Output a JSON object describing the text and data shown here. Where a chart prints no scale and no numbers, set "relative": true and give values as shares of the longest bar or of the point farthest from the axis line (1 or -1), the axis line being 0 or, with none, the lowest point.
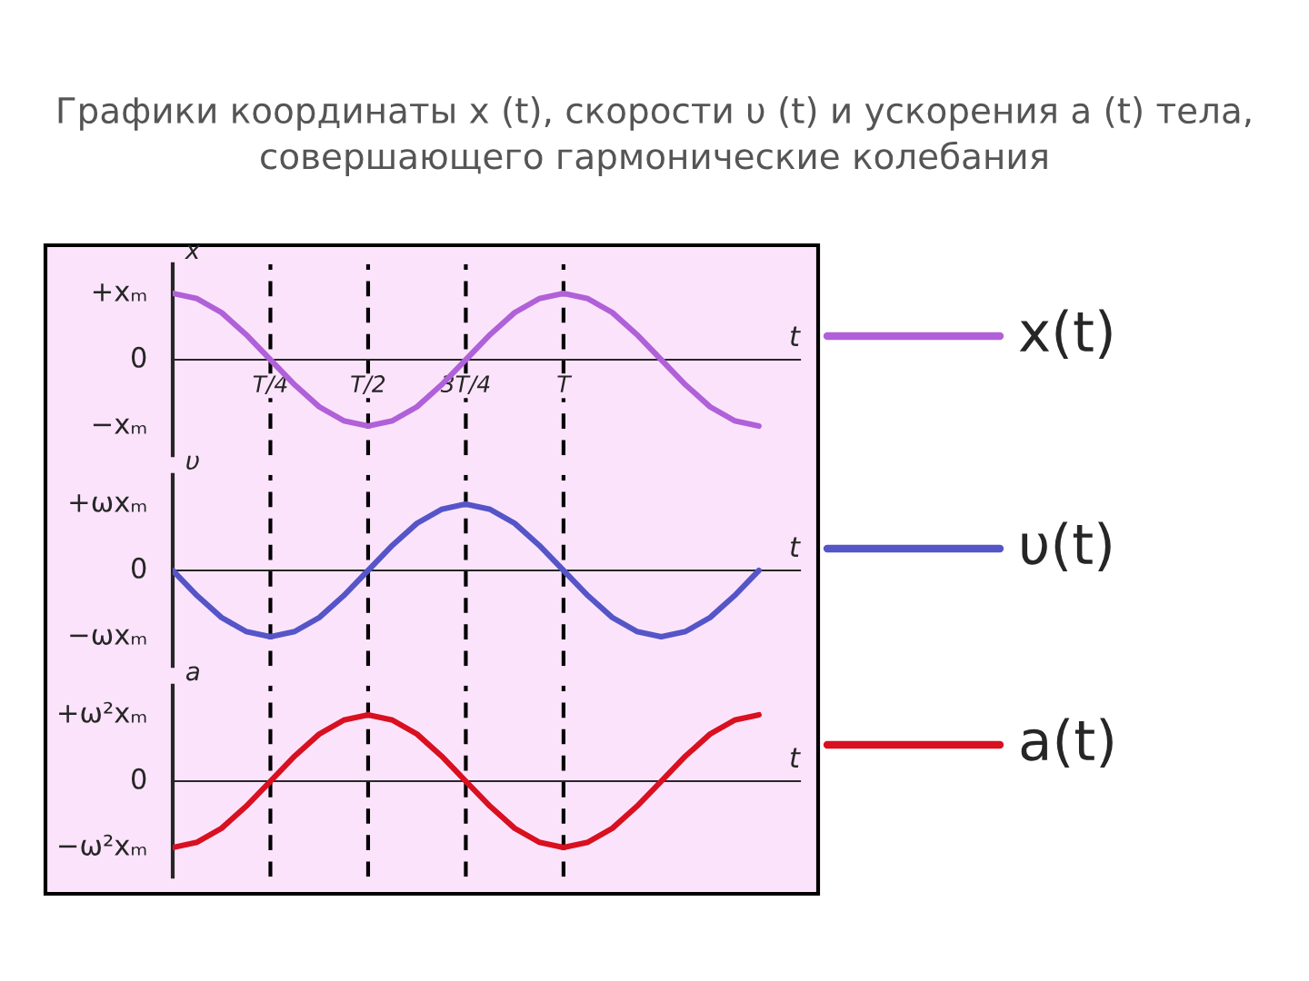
{
  "chart_data": [
    {
      "type": "line",
      "title": "Графики координаты x (t), скорости υ (t) и ускорения a (t) тела, совершающего гармонические колебания",
      "xlabel": "t",
      "ylabel": "x",
      "relative": true,
      "grid": "x",
      "line_style": "solid",
      "categories": [
        null,
        null,
        null,
        null,
        "T/4",
        null,
        null,
        null,
        "T/2",
        null,
        null,
        null,
        "3T/4",
        null,
        null,
        null,
        "T",
        null,
        null,
        null,
        null,
        null,
        null,
        null,
        null
      ],
      "series": [
        {
          "name": "x(t)",
          "color": "#b060d8",
          "values": [
            1,
            0.92,
            0.71,
            0.38,
            0,
            -0.38,
            -0.71,
            -0.92,
            -1,
            -0.92,
            -0.71,
            -0.38,
            0,
            0.38,
            0.71,
            0.92,
            1,
            0.92,
            0.71,
            0.38,
            0,
            -0.38,
            -0.71,
            -0.92,
            -1
          ]
        }
      ],
      "annotations": [
        "+xₘ",
        "0",
        "−xₘ"
      ]
    },
    {
      "type": "line",
      "xlabel": "t",
      "ylabel": "υ",
      "relative": true,
      "grid": "x",
      "line_style": "solid",
      "categories": [
        null,
        null,
        null,
        null,
        null,
        null,
        null,
        null,
        null,
        null,
        null,
        null,
        null,
        null,
        null,
        null,
        null,
        null,
        null,
        null,
        null,
        null,
        null,
        null,
        null
      ],
      "series": [
        {
          "name": "υ(t)",
          "color": "#5555c8",
          "values": [
            0,
            -0.38,
            -0.71,
            -0.92,
            -1,
            -0.92,
            -0.71,
            -0.38,
            0,
            0.38,
            0.71,
            0.92,
            1,
            0.92,
            0.71,
            0.38,
            0,
            -0.38,
            -0.71,
            -0.92,
            -1,
            -0.92,
            -0.71,
            -0.38,
            0
          ]
        }
      ],
      "annotations": [
        "+ωxₘ",
        "0",
        "−ωxₘ"
      ]
    },
    {
      "type": "line",
      "xlabel": "t",
      "ylabel": "a",
      "relative": true,
      "grid": "x",
      "line_style": "solid",
      "categories": [
        null,
        null,
        null,
        null,
        null,
        null,
        null,
        null,
        null,
        null,
        null,
        null,
        null,
        null,
        null,
        null,
        null,
        null,
        null,
        null,
        null,
        null,
        null,
        null,
        null
      ],
      "series": [
        {
          "name": "a(t)",
          "color": "#d81020",
          "values": [
            -1,
            -0.92,
            -0.71,
            -0.38,
            0,
            0.38,
            0.71,
            0.92,
            1,
            0.92,
            0.71,
            0.38,
            0,
            -0.38,
            -0.71,
            -0.92,
            -1,
            -0.92,
            -0.71,
            -0.38,
            0,
            0.38,
            0.71,
            0.92,
            1
          ]
        }
      ],
      "annotations": [
        "+ω²xₘ",
        "0",
        "−ω²xₘ"
      ]
    }
  ]
}
